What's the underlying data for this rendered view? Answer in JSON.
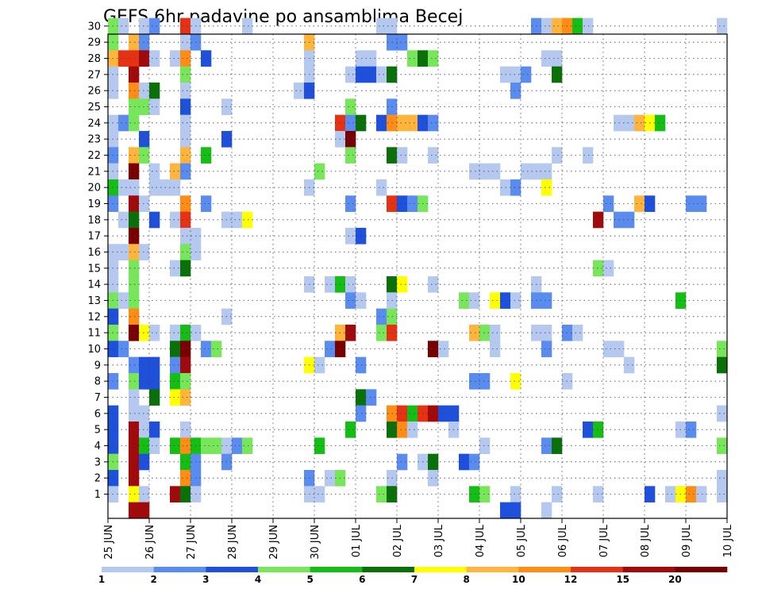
{
  "chart_data": {
    "type": "heatmap",
    "title": "GEFS 6hr padavine po ansamblima Becej",
    "x_ticks": [
      "25 JUN",
      "26 JUN",
      "27 JUN",
      "28 JUN",
      "29 JUN",
      "30 JUN",
      "01 JUL",
      "02 JUL",
      "03 JUL",
      "04 JUL",
      "05 JUL",
      "06 JUL",
      "07 JUL",
      "08 JUL",
      "09 JUL",
      "10 JUL"
    ],
    "y_ticks": [
      "1",
      "2",
      "3",
      "4",
      "5",
      "6",
      "7",
      "8",
      "9",
      "10",
      "11",
      "12",
      "13",
      "14",
      "15",
      "16",
      "17",
      "18",
      "19",
      "20",
      "21",
      "22",
      "23",
      "24",
      "25",
      "26",
      "27",
      "28",
      "29",
      "30"
    ],
    "colorbar": {
      "labels": [
        "1",
        "2",
        "3",
        "4",
        "5",
        "6",
        "7",
        "8",
        "10",
        "12",
        "15",
        "20"
      ],
      "colors": [
        "#b4c8f0",
        "#5a8cf0",
        "#1e50dc",
        "#78e65a",
        "#14be14",
        "#0a700a",
        "#ffff00",
        "#ffb43c",
        "#ff8c14",
        "#e63214",
        "#a00a0a",
        "#780000"
      ]
    },
    "grid": true,
    "notes": "cells: [member, 6h-step index from 25 JUN 00Z, color-class 1..12]",
    "cells": [
      [
        30,
        0,
        4
      ],
      [
        30,
        1,
        1
      ],
      [
        30,
        3,
        1
      ],
      [
        30,
        4,
        2
      ],
      [
        30,
        7,
        10
      ],
      [
        30,
        8,
        1
      ],
      [
        30,
        13,
        1
      ],
      [
        30,
        26,
        1
      ],
      [
        30,
        27,
        1
      ],
      [
        30,
        41,
        2
      ],
      [
        30,
        42,
        1
      ],
      [
        30,
        43,
        8
      ],
      [
        30,
        44,
        9
      ],
      [
        30,
        45,
        5
      ],
      [
        30,
        46,
        1
      ],
      [
        30,
        59,
        1
      ],
      [
        29,
        0,
        4
      ],
      [
        29,
        2,
        8
      ],
      [
        29,
        3,
        2
      ],
      [
        29,
        7,
        1
      ],
      [
        29,
        8,
        2
      ],
      [
        29,
        19,
        8
      ],
      [
        29,
        27,
        2
      ],
      [
        29,
        28,
        2
      ],
      [
        28,
        0,
        8
      ],
      [
        28,
        1,
        10
      ],
      [
        28,
        2,
        10
      ],
      [
        28,
        3,
        11
      ],
      [
        28,
        4,
        1
      ],
      [
        28,
        6,
        1
      ],
      [
        28,
        7,
        9
      ],
      [
        28,
        9,
        3
      ],
      [
        28,
        19,
        1
      ],
      [
        28,
        24,
        1
      ],
      [
        28,
        25,
        1
      ],
      [
        28,
        29,
        4
      ],
      [
        28,
        30,
        6
      ],
      [
        28,
        31,
        4
      ],
      [
        28,
        42,
        1
      ],
      [
        28,
        43,
        1
      ],
      [
        27,
        0,
        1
      ],
      [
        27,
        2,
        11
      ],
      [
        27,
        7,
        4
      ],
      [
        27,
        19,
        1
      ],
      [
        27,
        23,
        1
      ],
      [
        27,
        24,
        3
      ],
      [
        27,
        25,
        3
      ],
      [
        27,
        26,
        1
      ],
      [
        27,
        27,
        6
      ],
      [
        27,
        38,
        1
      ],
      [
        27,
        39,
        1
      ],
      [
        27,
        40,
        2
      ],
      [
        27,
        43,
        6
      ],
      [
        26,
        0,
        1
      ],
      [
        26,
        2,
        9
      ],
      [
        26,
        3,
        1
      ],
      [
        26,
        4,
        6
      ],
      [
        26,
        7,
        1
      ],
      [
        26,
        18,
        1
      ],
      [
        26,
        19,
        3
      ],
      [
        26,
        39,
        2
      ],
      [
        25,
        2,
        4
      ],
      [
        25,
        3,
        4
      ],
      [
        25,
        4,
        1
      ],
      [
        25,
        7,
        3
      ],
      [
        25,
        11,
        1
      ],
      [
        25,
        23,
        4
      ],
      [
        25,
        27,
        2
      ],
      [
        24,
        0,
        1
      ],
      [
        24,
        1,
        2
      ],
      [
        24,
        2,
        4
      ],
      [
        24,
        7,
        1
      ],
      [
        24,
        22,
        10
      ],
      [
        24,
        23,
        2
      ],
      [
        24,
        24,
        6
      ],
      [
        24,
        26,
        3
      ],
      [
        24,
        27,
        9
      ],
      [
        24,
        28,
        8
      ],
      [
        24,
        29,
        8
      ],
      [
        24,
        30,
        3
      ],
      [
        24,
        31,
        2
      ],
      [
        24,
        49,
        1
      ],
      [
        24,
        50,
        1
      ],
      [
        24,
        51,
        8
      ],
      [
        24,
        52,
        7
      ],
      [
        24,
        53,
        5
      ],
      [
        23,
        0,
        1
      ],
      [
        23,
        3,
        3
      ],
      [
        23,
        7,
        1
      ],
      [
        23,
        11,
        3
      ],
      [
        23,
        22,
        1
      ],
      [
        23,
        23,
        12
      ],
      [
        22,
        0,
        2
      ],
      [
        22,
        2,
        8
      ],
      [
        22,
        3,
        4
      ],
      [
        22,
        7,
        8
      ],
      [
        22,
        9,
        5
      ],
      [
        22,
        23,
        4
      ],
      [
        22,
        27,
        6
      ],
      [
        22,
        28,
        1
      ],
      [
        22,
        31,
        1
      ],
      [
        22,
        43,
        1
      ],
      [
        22,
        46,
        1
      ],
      [
        21,
        0,
        1
      ],
      [
        21,
        2,
        12
      ],
      [
        21,
        4,
        1
      ],
      [
        21,
        6,
        8
      ],
      [
        21,
        7,
        2
      ],
      [
        21,
        20,
        4
      ],
      [
        21,
        35,
        1
      ],
      [
        21,
        36,
        1
      ],
      [
        21,
        37,
        1
      ],
      [
        21,
        40,
        1
      ],
      [
        21,
        41,
        1
      ],
      [
        21,
        42,
        1
      ],
      [
        20,
        0,
        5
      ],
      [
        20,
        1,
        1
      ],
      [
        20,
        2,
        1
      ],
      [
        20,
        4,
        1
      ],
      [
        20,
        5,
        1
      ],
      [
        20,
        6,
        1
      ],
      [
        20,
        19,
        1
      ],
      [
        20,
        26,
        1
      ],
      [
        20,
        38,
        1
      ],
      [
        20,
        39,
        2
      ],
      [
        20,
        42,
        7
      ],
      [
        19,
        0,
        2
      ],
      [
        19,
        2,
        11
      ],
      [
        19,
        3,
        1
      ],
      [
        19,
        7,
        9
      ],
      [
        19,
        9,
        2
      ],
      [
        19,
        23,
        2
      ],
      [
        19,
        27,
        10
      ],
      [
        19,
        28,
        3
      ],
      [
        19,
        29,
        2
      ],
      [
        19,
        30,
        4
      ],
      [
        19,
        48,
        2
      ],
      [
        19,
        51,
        8
      ],
      [
        19,
        52,
        3
      ],
      [
        19,
        56,
        2
      ],
      [
        19,
        57,
        2
      ],
      [
        18,
        1,
        1
      ],
      [
        18,
        2,
        6
      ],
      [
        18,
        4,
        3
      ],
      [
        18,
        6,
        1
      ],
      [
        18,
        7,
        10
      ],
      [
        18,
        11,
        1
      ],
      [
        18,
        12,
        1
      ],
      [
        18,
        13,
        7
      ],
      [
        18,
        47,
        11
      ],
      [
        18,
        49,
        2
      ],
      [
        18,
        50,
        2
      ],
      [
        17,
        2,
        12
      ],
      [
        17,
        7,
        1
      ],
      [
        17,
        8,
        1
      ],
      [
        17,
        23,
        1
      ],
      [
        17,
        24,
        3
      ],
      [
        16,
        0,
        1
      ],
      [
        16,
        1,
        1
      ],
      [
        16,
        2,
        8
      ],
      [
        16,
        3,
        1
      ],
      [
        16,
        7,
        4
      ],
      [
        16,
        8,
        1
      ],
      [
        15,
        0,
        1
      ],
      [
        15,
        2,
        4
      ],
      [
        15,
        6,
        1
      ],
      [
        15,
        7,
        6
      ],
      [
        15,
        47,
        4
      ],
      [
        15,
        48,
        1
      ],
      [
        14,
        0,
        1
      ],
      [
        14,
        2,
        4
      ],
      [
        14,
        19,
        1
      ],
      [
        14,
        21,
        1
      ],
      [
        14,
        22,
        5
      ],
      [
        14,
        23,
        1
      ],
      [
        14,
        27,
        6
      ],
      [
        14,
        28,
        7
      ],
      [
        14,
        31,
        1
      ],
      [
        14,
        41,
        1
      ],
      [
        13,
        0,
        4
      ],
      [
        13,
        1,
        1
      ],
      [
        13,
        2,
        4
      ],
      [
        13,
        23,
        2
      ],
      [
        13,
        24,
        1
      ],
      [
        13,
        27,
        1
      ],
      [
        13,
        34,
        4
      ],
      [
        13,
        35,
        1
      ],
      [
        13,
        37,
        7
      ],
      [
        13,
        38,
        3
      ],
      [
        13,
        39,
        1
      ],
      [
        13,
        41,
        2
      ],
      [
        13,
        42,
        2
      ],
      [
        13,
        55,
        5
      ],
      [
        12,
        0,
        3
      ],
      [
        12,
        2,
        9
      ],
      [
        12,
        11,
        1
      ],
      [
        12,
        26,
        2
      ],
      [
        12,
        27,
        4
      ],
      [
        11,
        0,
        4
      ],
      [
        11,
        2,
        12
      ],
      [
        11,
        3,
        7
      ],
      [
        11,
        4,
        1
      ],
      [
        11,
        6,
        1
      ],
      [
        11,
        7,
        5
      ],
      [
        11,
        8,
        1
      ],
      [
        11,
        22,
        8
      ],
      [
        11,
        23,
        11
      ],
      [
        11,
        26,
        4
      ],
      [
        11,
        27,
        10
      ],
      [
        11,
        35,
        8
      ],
      [
        11,
        36,
        4
      ],
      [
        11,
        37,
        1
      ],
      [
        11,
        41,
        1
      ],
      [
        11,
        42,
        1
      ],
      [
        11,
        44,
        2
      ],
      [
        11,
        45,
        1
      ],
      [
        10,
        0,
        3
      ],
      [
        10,
        1,
        2
      ],
      [
        10,
        6,
        6
      ],
      [
        10,
        7,
        12
      ],
      [
        10,
        9,
        2
      ],
      [
        10,
        10,
        4
      ],
      [
        10,
        21,
        2
      ],
      [
        10,
        22,
        12
      ],
      [
        10,
        31,
        12
      ],
      [
        10,
        32,
        1
      ],
      [
        10,
        37,
        1
      ],
      [
        10,
        42,
        2
      ],
      [
        10,
        48,
        1
      ],
      [
        10,
        49,
        1
      ],
      [
        10,
        59,
        4
      ],
      [
        9,
        2,
        2
      ],
      [
        9,
        3,
        3
      ],
      [
        9,
        4,
        3
      ],
      [
        9,
        6,
        2
      ],
      [
        9,
        7,
        11
      ],
      [
        9,
        19,
        7
      ],
      [
        9,
        20,
        1
      ],
      [
        9,
        24,
        2
      ],
      [
        9,
        50,
        1
      ],
      [
        9,
        59,
        6
      ],
      [
        8,
        0,
        2
      ],
      [
        8,
        2,
        4
      ],
      [
        8,
        3,
        3
      ],
      [
        8,
        4,
        3
      ],
      [
        8,
        6,
        5
      ],
      [
        8,
        7,
        4
      ],
      [
        8,
        35,
        2
      ],
      [
        8,
        36,
        2
      ],
      [
        8,
        39,
        7
      ],
      [
        8,
        44,
        1
      ],
      [
        7,
        2,
        1
      ],
      [
        7,
        4,
        6
      ],
      [
        7,
        6,
        7
      ],
      [
        7,
        7,
        8
      ],
      [
        7,
        24,
        6
      ],
      [
        7,
        25,
        2
      ],
      [
        6,
        0,
        3
      ],
      [
        6,
        2,
        1
      ],
      [
        6,
        3,
        1
      ],
      [
        6,
        24,
        2
      ],
      [
        6,
        27,
        9
      ],
      [
        6,
        28,
        10
      ],
      [
        6,
        29,
        5
      ],
      [
        6,
        30,
        10
      ],
      [
        6,
        31,
        11
      ],
      [
        6,
        32,
        3
      ],
      [
        6,
        33,
        3
      ],
      [
        6,
        59,
        1
      ],
      [
        5,
        0,
        3
      ],
      [
        5,
        2,
        11
      ],
      [
        5,
        3,
        1
      ],
      [
        5,
        4,
        3
      ],
      [
        5,
        7,
        1
      ],
      [
        5,
        23,
        5
      ],
      [
        5,
        27,
        6
      ],
      [
        5,
        28,
        9
      ],
      [
        5,
        29,
        1
      ],
      [
        5,
        33,
        1
      ],
      [
        5,
        46,
        3
      ],
      [
        5,
        47,
        5
      ],
      [
        5,
        55,
        1
      ],
      [
        5,
        56,
        2
      ],
      [
        4,
        0,
        3
      ],
      [
        4,
        2,
        11
      ],
      [
        4,
        3,
        5
      ],
      [
        4,
        4,
        1
      ],
      [
        4,
        6,
        5
      ],
      [
        4,
        7,
        9
      ],
      [
        4,
        8,
        5
      ],
      [
        4,
        9,
        4
      ],
      [
        4,
        10,
        4
      ],
      [
        4,
        11,
        1
      ],
      [
        4,
        12,
        2
      ],
      [
        4,
        13,
        4
      ],
      [
        4,
        20,
        5
      ],
      [
        4,
        36,
        1
      ],
      [
        4,
        42,
        2
      ],
      [
        4,
        43,
        6
      ],
      [
        4,
        59,
        4
      ],
      [
        3,
        0,
        4
      ],
      [
        3,
        2,
        11
      ],
      [
        3,
        3,
        3
      ],
      [
        3,
        7,
        5
      ],
      [
        3,
        8,
        2
      ],
      [
        3,
        11,
        2
      ],
      [
        3,
        28,
        2
      ],
      [
        3,
        30,
        1
      ],
      [
        3,
        31,
        6
      ],
      [
        3,
        34,
        3
      ],
      [
        3,
        35,
        2
      ],
      [
        2,
        0,
        3
      ],
      [
        2,
        2,
        11
      ],
      [
        2,
        7,
        9
      ],
      [
        2,
        8,
        2
      ],
      [
        2,
        19,
        2
      ],
      [
        2,
        21,
        1
      ],
      [
        2,
        22,
        4
      ],
      [
        2,
        27,
        1
      ],
      [
        2,
        31,
        1
      ],
      [
        2,
        59,
        1
      ],
      [
        1,
        0,
        1
      ],
      [
        1,
        2,
        7
      ],
      [
        1,
        3,
        1
      ],
      [
        1,
        6,
        11
      ],
      [
        1,
        7,
        6
      ],
      [
        1,
        8,
        1
      ],
      [
        1,
        19,
        1
      ],
      [
        1,
        20,
        1
      ],
      [
        1,
        26,
        4
      ],
      [
        1,
        27,
        6
      ],
      [
        1,
        35,
        5
      ],
      [
        1,
        36,
        4
      ],
      [
        1,
        39,
        1
      ],
      [
        1,
        43,
        1
      ],
      [
        1,
        47,
        1
      ],
      [
        1,
        52,
        3
      ],
      [
        1,
        54,
        1
      ],
      [
        1,
        55,
        7
      ],
      [
        1,
        56,
        9
      ],
      [
        1,
        57,
        1
      ],
      [
        1,
        59,
        1
      ],
      [
        0,
        2,
        11
      ],
      [
        0,
        3,
        11
      ],
      [
        0,
        38,
        3
      ],
      [
        0,
        39,
        3
      ],
      [
        0,
        42,
        1
      ]
    ]
  }
}
